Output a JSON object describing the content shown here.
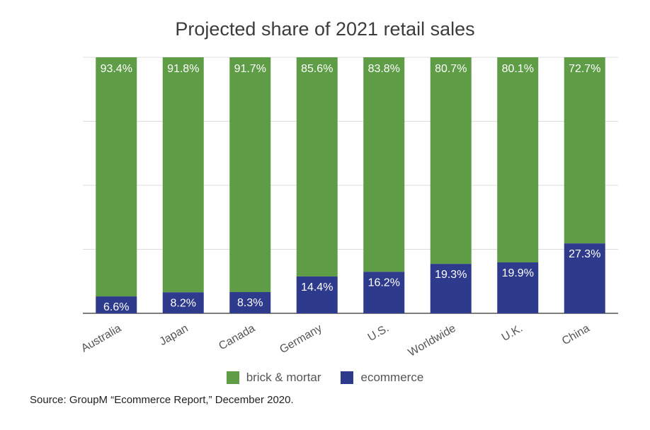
{
  "chart_data": {
    "type": "bar",
    "stacked": true,
    "percent": true,
    "title": "Projected share of 2021 retail sales",
    "categories": [
      "Australia",
      "Japan",
      "Canada",
      "Germany",
      "U.S.",
      "Worldwide",
      "U.K.",
      "China"
    ],
    "series": [
      {
        "name": "ecommerce",
        "color": "#2e3a8c",
        "values": [
          6.6,
          8.2,
          8.3,
          14.4,
          16.2,
          19.3,
          19.9,
          27.3
        ],
        "labels": [
          "6.6%",
          "8.2%",
          "8.3%",
          "14.4%",
          "16.2%",
          "19.3%",
          "19.9%",
          "27.3%"
        ]
      },
      {
        "name": "brick & mortar",
        "color": "#5e9c46",
        "values": [
          93.4,
          91.8,
          91.7,
          85.6,
          83.8,
          80.7,
          80.1,
          72.7
        ],
        "labels": [
          "93.4%",
          "91.8%",
          "91.7%",
          "85.6%",
          "83.8%",
          "80.7%",
          "80.1%",
          "72.7%"
        ]
      }
    ],
    "ylim": [
      0,
      100
    ],
    "grid": true,
    "legend_position": "bottom"
  },
  "legend": {
    "brick_label": "brick & mortar",
    "ecom_label": "ecommerce",
    "brick_color": "#5e9c46",
    "ecom_color": "#2e3a8c"
  },
  "source": "Source: GroupM “Ecommerce Report,” December 2020."
}
